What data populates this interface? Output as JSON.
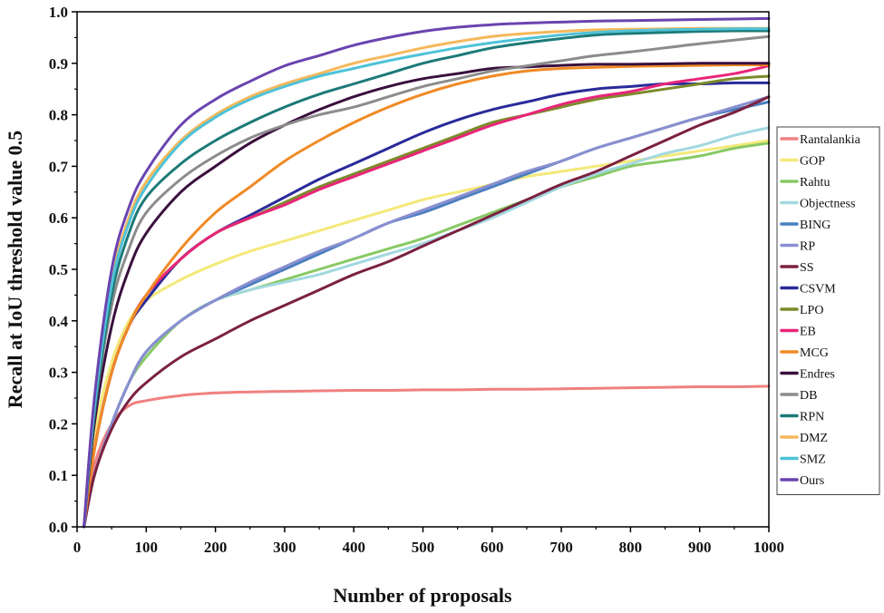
{
  "chart_data": {
    "type": "line",
    "title": "",
    "xlabel": "Number of proposals",
    "ylabel": "Recall at IoU threshold value 0.5",
    "xlim": [
      0,
      1000
    ],
    "ylim": [
      0.0,
      1.0
    ],
    "xticks": [
      "0",
      "100",
      "200",
      "300",
      "400",
      "500",
      "600",
      "700",
      "800",
      "900",
      "1000"
    ],
    "yticks": [
      "0.0",
      "0.1",
      "0.2",
      "0.3",
      "0.4",
      "0.5",
      "0.6",
      "0.7",
      "0.8",
      "0.9",
      "1.0"
    ],
    "grid": false,
    "legend_position": "right",
    "x": [
      10,
      25,
      50,
      75,
      100,
      150,
      200,
      250,
      300,
      350,
      400,
      450,
      500,
      550,
      600,
      650,
      700,
      750,
      800,
      850,
      900,
      950,
      1000
    ],
    "series": [
      {
        "name": "Rantalankia",
        "color": "#f08080",
        "values": [
          0.0,
          0.12,
          0.2,
          0.235,
          0.245,
          0.255,
          0.26,
          0.262,
          0.263,
          0.264,
          0.265,
          0.265,
          0.266,
          0.266,
          0.267,
          0.267,
          0.268,
          0.269,
          0.27,
          0.271,
          0.272,
          0.272,
          0.273
        ]
      },
      {
        "name": "GOP",
        "color": "#f4e97a",
        "values": [
          0.0,
          0.18,
          0.32,
          0.4,
          0.44,
          0.48,
          0.51,
          0.535,
          0.555,
          0.575,
          0.595,
          0.615,
          0.635,
          0.65,
          0.665,
          0.68,
          0.69,
          0.7,
          0.71,
          0.72,
          0.73,
          0.74,
          0.75
        ]
      },
      {
        "name": "Rahtu",
        "color": "#88c965",
        "values": [
          0.0,
          0.1,
          0.2,
          0.28,
          0.33,
          0.4,
          0.44,
          0.46,
          0.48,
          0.5,
          0.52,
          0.54,
          0.56,
          0.585,
          0.61,
          0.635,
          0.66,
          0.68,
          0.7,
          0.71,
          0.72,
          0.735,
          0.745
        ]
      },
      {
        "name": "Objectness",
        "color": "#a3d8e0",
        "values": [
          0.0,
          0.1,
          0.2,
          0.28,
          0.34,
          0.4,
          0.44,
          0.46,
          0.475,
          0.49,
          0.51,
          0.53,
          0.55,
          0.575,
          0.6,
          0.63,
          0.66,
          0.685,
          0.705,
          0.725,
          0.74,
          0.76,
          0.775
        ]
      },
      {
        "name": "BING",
        "color": "#4a7fc0",
        "values": [
          0.0,
          0.1,
          0.2,
          0.28,
          0.34,
          0.4,
          0.44,
          0.47,
          0.5,
          0.53,
          0.56,
          0.59,
          0.61,
          0.635,
          0.66,
          0.685,
          0.71,
          0.735,
          0.755,
          0.775,
          0.795,
          0.81,
          0.825
        ]
      },
      {
        "name": "RP",
        "color": "#8a8fd0",
        "values": [
          0.0,
          0.1,
          0.2,
          0.28,
          0.34,
          0.4,
          0.44,
          0.475,
          0.505,
          0.535,
          0.56,
          0.59,
          0.615,
          0.64,
          0.665,
          0.69,
          0.71,
          0.735,
          0.755,
          0.775,
          0.795,
          0.815,
          0.835
        ]
      },
      {
        "name": "SS",
        "color": "#7b2140",
        "values": [
          0.0,
          0.1,
          0.19,
          0.245,
          0.28,
          0.33,
          0.365,
          0.4,
          0.43,
          0.46,
          0.49,
          0.515,
          0.545,
          0.575,
          0.605,
          0.635,
          0.665,
          0.69,
          0.72,
          0.75,
          0.78,
          0.805,
          0.835
        ]
      },
      {
        "name": "CSVM",
        "color": "#2a2a9a",
        "values": [
          0.0,
          0.15,
          0.3,
          0.39,
          0.44,
          0.52,
          0.57,
          0.605,
          0.64,
          0.675,
          0.705,
          0.735,
          0.765,
          0.79,
          0.81,
          0.825,
          0.84,
          0.85,
          0.855,
          0.86,
          0.86,
          0.862,
          0.862
        ]
      },
      {
        "name": "LPO",
        "color": "#7c8a2a",
        "values": [
          0.0,
          0.15,
          0.3,
          0.39,
          0.45,
          0.52,
          0.57,
          0.6,
          0.63,
          0.66,
          0.685,
          0.71,
          0.735,
          0.76,
          0.785,
          0.8,
          0.815,
          0.83,
          0.84,
          0.85,
          0.86,
          0.87,
          0.875
        ]
      },
      {
        "name": "EB",
        "color": "#e8257a",
        "values": [
          0.0,
          0.15,
          0.3,
          0.39,
          0.45,
          0.52,
          0.57,
          0.6,
          0.625,
          0.655,
          0.68,
          0.705,
          0.73,
          0.755,
          0.78,
          0.8,
          0.82,
          0.835,
          0.845,
          0.86,
          0.87,
          0.88,
          0.895
        ]
      },
      {
        "name": "MCG",
        "color": "#f08a24",
        "values": [
          0.0,
          0.15,
          0.3,
          0.39,
          0.45,
          0.54,
          0.61,
          0.66,
          0.71,
          0.75,
          0.785,
          0.815,
          0.84,
          0.86,
          0.875,
          0.885,
          0.89,
          0.892,
          0.894,
          0.895,
          0.896,
          0.897,
          0.897
        ]
      },
      {
        "name": "Endres",
        "color": "#3a0f3d",
        "values": [
          0.0,
          0.2,
          0.39,
          0.5,
          0.57,
          0.65,
          0.7,
          0.745,
          0.78,
          0.81,
          0.835,
          0.855,
          0.87,
          0.88,
          0.89,
          0.893,
          0.896,
          0.898,
          0.898,
          0.899,
          0.9,
          0.9,
          0.9
        ]
      },
      {
        "name": "DB",
        "color": "#8c8c8c",
        "values": [
          0.0,
          0.22,
          0.43,
          0.54,
          0.61,
          0.675,
          0.72,
          0.755,
          0.78,
          0.8,
          0.815,
          0.835,
          0.855,
          0.87,
          0.885,
          0.895,
          0.905,
          0.915,
          0.922,
          0.93,
          0.938,
          0.945,
          0.952
        ]
      },
      {
        "name": "RPN",
        "color": "#1c7a78",
        "values": [
          0.0,
          0.22,
          0.45,
          0.57,
          0.64,
          0.705,
          0.75,
          0.785,
          0.815,
          0.84,
          0.86,
          0.88,
          0.9,
          0.915,
          0.93,
          0.94,
          0.948,
          0.955,
          0.958,
          0.96,
          0.962,
          0.963,
          0.963
        ]
      },
      {
        "name": "DMZ",
        "color": "#f5b85a",
        "values": [
          0.0,
          0.24,
          0.48,
          0.6,
          0.67,
          0.75,
          0.8,
          0.835,
          0.86,
          0.88,
          0.9,
          0.915,
          0.93,
          0.942,
          0.952,
          0.958,
          0.962,
          0.965,
          0.966,
          0.967,
          0.968,
          0.968,
          0.968
        ]
      },
      {
        "name": "SMZ",
        "color": "#4fc2d8",
        "values": [
          0.0,
          0.23,
          0.47,
          0.59,
          0.66,
          0.745,
          0.795,
          0.83,
          0.855,
          0.875,
          0.89,
          0.905,
          0.918,
          0.93,
          0.94,
          0.948,
          0.955,
          0.96,
          0.963,
          0.965,
          0.966,
          0.967,
          0.967
        ]
      },
      {
        "name": "Ours",
        "color": "#6a44b0",
        "values": [
          0.0,
          0.25,
          0.5,
          0.62,
          0.69,
          0.78,
          0.83,
          0.865,
          0.895,
          0.915,
          0.935,
          0.95,
          0.962,
          0.97,
          0.975,
          0.978,
          0.98,
          0.982,
          0.983,
          0.984,
          0.985,
          0.986,
          0.987
        ]
      }
    ]
  }
}
